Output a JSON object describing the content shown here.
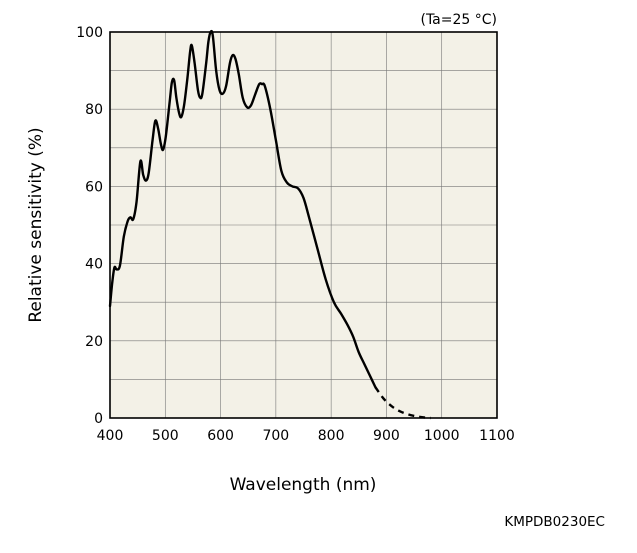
{
  "chart_data": {
    "type": "line",
    "title": "",
    "annotation": "(Ta=25 °C)",
    "xlabel": "Wavelength (nm)",
    "ylabel": "Relative sensitivity (%)",
    "xlim": [
      400,
      1100
    ],
    "ylim": [
      0,
      100
    ],
    "x_ticks": [
      400,
      500,
      600,
      700,
      800,
      900,
      1000,
      1100
    ],
    "y_ticks": [
      0,
      20,
      40,
      60,
      80,
      100
    ],
    "grid": true,
    "series": [
      {
        "style": "solid",
        "points": [
          [
            400,
            29
          ],
          [
            404,
            35
          ],
          [
            408,
            39
          ],
          [
            412,
            38.5
          ],
          [
            418,
            39.5
          ],
          [
            425,
            47
          ],
          [
            432,
            51
          ],
          [
            437,
            52
          ],
          [
            442,
            51.5
          ],
          [
            448,
            56
          ],
          [
            455,
            66.5
          ],
          [
            460,
            63
          ],
          [
            465,
            61.5
          ],
          [
            470,
            63.5
          ],
          [
            477,
            72
          ],
          [
            482,
            77
          ],
          [
            487,
            75
          ],
          [
            492,
            71
          ],
          [
            496,
            69.5
          ],
          [
            501,
            73
          ],
          [
            508,
            82
          ],
          [
            512,
            87
          ],
          [
            516,
            87.5
          ],
          [
            520,
            83
          ],
          [
            525,
            79
          ],
          [
            529,
            78
          ],
          [
            534,
            81
          ],
          [
            540,
            88
          ],
          [
            545,
            95
          ],
          [
            548,
            96.5
          ],
          [
            553,
            92
          ],
          [
            559,
            85
          ],
          [
            563,
            83
          ],
          [
            567,
            84
          ],
          [
            574,
            92
          ],
          [
            578,
            97.5
          ],
          [
            582,
            100
          ],
          [
            586,
            99
          ],
          [
            592,
            90
          ],
          [
            598,
            85
          ],
          [
            604,
            84
          ],
          [
            610,
            86
          ],
          [
            617,
            92
          ],
          [
            622,
            94
          ],
          [
            627,
            93
          ],
          [
            633,
            89
          ],
          [
            640,
            83
          ],
          [
            648,
            80.5
          ],
          [
            655,
            81
          ],
          [
            663,
            84
          ],
          [
            670,
            86.5
          ],
          [
            675,
            86.5
          ],
          [
            680,
            86
          ],
          [
            690,
            80
          ],
          [
            700,
            72
          ],
          [
            710,
            64
          ],
          [
            720,
            61
          ],
          [
            730,
            60
          ],
          [
            740,
            59.5
          ],
          [
            750,
            57
          ],
          [
            760,
            52
          ],
          [
            775,
            44
          ],
          [
            790,
            36
          ],
          [
            805,
            30
          ],
          [
            818,
            27
          ],
          [
            830,
            24
          ],
          [
            840,
            21
          ],
          [
            850,
            17
          ],
          [
            860,
            14
          ],
          [
            870,
            11
          ],
          [
            880,
            8
          ]
        ]
      },
      {
        "style": "dashed",
        "points": [
          [
            880,
            8
          ],
          [
            895,
            5
          ],
          [
            910,
            3
          ],
          [
            925,
            1.7
          ],
          [
            940,
            0.9
          ],
          [
            955,
            0.4
          ],
          [
            970,
            0.1
          ],
          [
            980,
            0
          ]
        ]
      }
    ]
  },
  "figure_code": "KMPDB0230EC"
}
